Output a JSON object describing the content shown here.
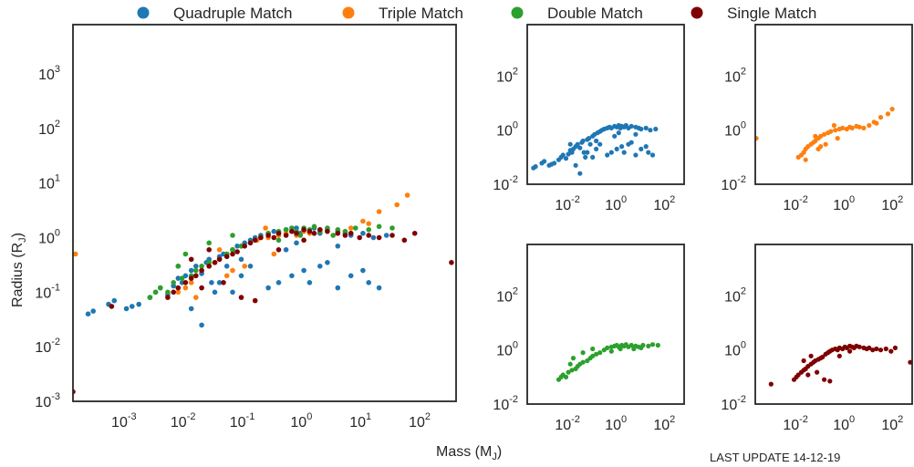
{
  "chart_data": {
    "type": "scatter",
    "legend": {
      "placement": "top",
      "entries": [
        {
          "key": "quadruple",
          "label": "Quadruple Match",
          "color": "#1f77b4"
        },
        {
          "key": "triple",
          "label": "Triple Match",
          "color": "#ff7f0e"
        },
        {
          "key": "double",
          "label": "Double Match",
          "color": "#2ca02c"
        },
        {
          "key": "single",
          "label": "Single Match",
          "color": "#7f0000"
        }
      ]
    },
    "xlabel": "Mass (M",
    "xlabel_sub": "J",
    "xlabel_close": ")",
    "ylabel": "Radius (R",
    "ylabel_sub": "J",
    "ylabel_close": ")",
    "xscale": "log",
    "yscale": "log",
    "grid": false,
    "main_panel": {
      "xlim": [
        0.0001,
        300
      ],
      "ylim": [
        0.001,
        8000
      ],
      "xticks": [
        {
          "exp": "-3",
          "v": 0.001
        },
        {
          "exp": "-2",
          "v": 0.01
        },
        {
          "exp": "-1",
          "v": 0.1
        },
        {
          "exp": "0",
          "v": 1
        },
        {
          "exp": "1",
          "v": 10
        },
        {
          "exp": "2",
          "v": 100
        }
      ],
      "yticks": [
        {
          "exp": "-3",
          "v": 0.001
        },
        {
          "exp": "-2",
          "v": 0.01
        },
        {
          "exp": "-1",
          "v": 0.1
        },
        {
          "exp": "0",
          "v": 1
        },
        {
          "exp": "1",
          "v": 10
        },
        {
          "exp": "2",
          "v": 100
        },
        {
          "exp": "3",
          "v": 1000
        }
      ]
    },
    "sub_panels": {
      "xlim": [
        0.0001,
        300
      ],
      "ylim": [
        0.01,
        8000
      ],
      "xticks": [
        {
          "exp": "-2",
          "v": 0.01
        },
        {
          "exp": "0",
          "v": 1
        },
        {
          "exp": "2",
          "v": 100
        }
      ],
      "yticks": [
        {
          "exp": "-2",
          "v": 0.01
        },
        {
          "exp": "0",
          "v": 1
        },
        {
          "exp": "2",
          "v": 100
        }
      ],
      "order": [
        "quadruple",
        "triple",
        "double",
        "single"
      ]
    },
    "series": [
      {
        "key": "quadruple",
        "name": "Quadruple Match",
        "points": [
          [
            0.00018,
            0.04
          ],
          [
            0.00022,
            0.045
          ],
          [
            0.0004,
            0.06
          ],
          [
            0.0005,
            0.07
          ],
          [
            0.0008,
            0.05
          ],
          [
            0.001,
            0.055
          ],
          [
            0.0013,
            0.06
          ],
          [
            0.002,
            0.08
          ],
          [
            0.0025,
            0.1
          ],
          [
            0.003,
            0.12
          ],
          [
            0.004,
            0.09
          ],
          [
            0.005,
            0.13
          ],
          [
            0.006,
            0.18
          ],
          [
            0.007,
            0.15
          ],
          [
            0.008,
            0.2
          ],
          [
            0.01,
            0.25
          ],
          [
            0.012,
            0.3
          ],
          [
            0.015,
            0.22
          ],
          [
            0.018,
            0.35
          ],
          [
            0.02,
            0.4
          ],
          [
            0.022,
            0.15
          ],
          [
            0.025,
            0.1
          ],
          [
            0.03,
            0.45
          ],
          [
            0.035,
            0.5
          ],
          [
            0.04,
            0.3
          ],
          [
            0.05,
            0.6
          ],
          [
            0.06,
            0.7
          ],
          [
            0.07,
            0.4
          ],
          [
            0.08,
            0.8
          ],
          [
            0.1,
            0.9
          ],
          [
            0.12,
            1.0
          ],
          [
            0.15,
            1.1
          ],
          [
            0.2,
            1.2
          ],
          [
            0.25,
            1.3
          ],
          [
            0.3,
            1.2
          ],
          [
            0.4,
            1.4
          ],
          [
            0.5,
            1.3
          ],
          [
            0.6,
            1.5
          ],
          [
            0.7,
            1.2
          ],
          [
            0.8,
            1.4
          ],
          [
            1.0,
            1.3
          ],
          [
            1.2,
            1.5
          ],
          [
            1.5,
            1.2
          ],
          [
            2.0,
            1.4
          ],
          [
            3.0,
            1.3
          ],
          [
            4.0,
            1.2
          ],
          [
            5.0,
            1.1
          ],
          [
            8.0,
            1.2
          ],
          [
            12.0,
            1.0
          ],
          [
            20.0,
            1.1
          ],
          [
            0.2,
            0.12
          ],
          [
            0.3,
            0.15
          ],
          [
            0.5,
            0.2
          ],
          [
            0.8,
            0.25
          ],
          [
            1.0,
            0.15
          ],
          [
            1.5,
            0.3
          ],
          [
            2.0,
            0.35
          ],
          [
            3.0,
            0.12
          ],
          [
            5.0,
            0.2
          ],
          [
            8.0,
            0.25
          ],
          [
            10.0,
            0.15
          ],
          [
            15.0,
            0.12
          ],
          [
            0.015,
            0.025
          ],
          [
            0.01,
            0.05
          ],
          [
            0.006,
            0.3
          ],
          [
            0.03,
            0.15
          ],
          [
            0.05,
            0.1
          ],
          [
            0.07,
            0.2
          ],
          [
            0.1,
            0.3
          ],
          [
            0.4,
            0.6
          ],
          [
            0.6,
            0.8
          ],
          [
            3.0,
            0.7
          ]
        ]
      },
      {
        "key": "triple",
        "name": "Triple Match",
        "points": [
          [
            0.00011,
            0.5
          ],
          [
            0.006,
            0.1
          ],
          [
            0.008,
            0.12
          ],
          [
            0.01,
            0.15
          ],
          [
            0.012,
            0.2
          ],
          [
            0.015,
            0.25
          ],
          [
            0.02,
            0.3
          ],
          [
            0.025,
            0.35
          ],
          [
            0.03,
            0.4
          ],
          [
            0.04,
            0.5
          ],
          [
            0.05,
            0.6
          ],
          [
            0.07,
            0.7
          ],
          [
            0.1,
            0.8
          ],
          [
            0.13,
            0.9
          ],
          [
            0.2,
            1.0
          ],
          [
            0.3,
            1.1
          ],
          [
            0.4,
            1.2
          ],
          [
            0.6,
            1.1
          ],
          [
            0.8,
            1.3
          ],
          [
            1.0,
            1.2
          ],
          [
            1.5,
            1.4
          ],
          [
            2.0,
            1.3
          ],
          [
            3.0,
            1.2
          ],
          [
            5.0,
            1.5
          ],
          [
            8.0,
            2.0
          ],
          [
            15.0,
            3.0
          ],
          [
            30.0,
            4.0
          ],
          [
            45.0,
            6.0
          ],
          [
            0.04,
            0.2
          ],
          [
            0.08,
            0.3
          ],
          [
            0.012,
            0.08
          ],
          [
            0.03,
            0.6
          ],
          [
            0.05,
            0.25
          ],
          [
            0.18,
            1.5
          ],
          [
            0.25,
            0.5
          ],
          [
            10.0,
            1.8
          ]
        ]
      },
      {
        "key": "double",
        "name": "Double Match",
        "points": [
          [
            0.002,
            0.08
          ],
          [
            0.0025,
            0.1
          ],
          [
            0.003,
            0.12
          ],
          [
            0.004,
            0.1
          ],
          [
            0.005,
            0.15
          ],
          [
            0.007,
            0.18
          ],
          [
            0.01,
            0.2
          ],
          [
            0.012,
            0.25
          ],
          [
            0.015,
            0.3
          ],
          [
            0.02,
            0.35
          ],
          [
            0.03,
            0.4
          ],
          [
            0.04,
            0.5
          ],
          [
            0.05,
            0.6
          ],
          [
            0.07,
            0.7
          ],
          [
            0.1,
            0.8
          ],
          [
            0.15,
            1.0
          ],
          [
            0.2,
            1.2
          ],
          [
            0.3,
            1.3
          ],
          [
            0.4,
            1.4
          ],
          [
            0.5,
            1.5
          ],
          [
            0.6,
            1.3
          ],
          [
            0.8,
            1.5
          ],
          [
            1.0,
            1.4
          ],
          [
            1.2,
            1.6
          ],
          [
            1.5,
            1.3
          ],
          [
            2.0,
            1.5
          ],
          [
            3.0,
            1.4
          ],
          [
            4.0,
            1.3
          ],
          [
            6.0,
            1.5
          ],
          [
            10.0,
            1.4
          ],
          [
            15.0,
            1.6
          ],
          [
            25.0,
            1.5
          ],
          [
            0.006,
            0.3
          ],
          [
            0.008,
            0.5
          ],
          [
            0.02,
            0.8
          ],
          [
            0.05,
            1.1
          ],
          [
            0.3,
            0.9
          ],
          [
            0.7,
            1.1
          ],
          [
            2.5,
            1.1
          ],
          [
            5.0,
            1.2
          ]
        ]
      },
      {
        "key": "single",
        "name": "Single Match",
        "points": [
          [
            0.0001,
            0.0015
          ],
          [
            0.00045,
            0.055
          ],
          [
            0.004,
            0.08
          ],
          [
            0.005,
            0.1
          ],
          [
            0.006,
            0.12
          ],
          [
            0.008,
            0.15
          ],
          [
            0.01,
            0.18
          ],
          [
            0.012,
            0.2
          ],
          [
            0.015,
            0.25
          ],
          [
            0.02,
            0.3
          ],
          [
            0.025,
            0.35
          ],
          [
            0.03,
            0.4
          ],
          [
            0.04,
            0.45
          ],
          [
            0.05,
            0.5
          ],
          [
            0.06,
            0.55
          ],
          [
            0.08,
            0.7
          ],
          [
            0.1,
            0.8
          ],
          [
            0.12,
            0.9
          ],
          [
            0.15,
            1.0
          ],
          [
            0.2,
            1.1
          ],
          [
            0.25,
            1.0
          ],
          [
            0.3,
            1.2
          ],
          [
            0.4,
            1.1
          ],
          [
            0.5,
            1.3
          ],
          [
            0.6,
            1.2
          ],
          [
            0.8,
            1.4
          ],
          [
            1.0,
            1.3
          ],
          [
            1.2,
            1.2
          ],
          [
            1.5,
            1.4
          ],
          [
            2.0,
            1.3
          ],
          [
            3.0,
            1.2
          ],
          [
            4.0,
            1.1
          ],
          [
            5.0,
            1.2
          ],
          [
            7.0,
            1.0
          ],
          [
            10.0,
            1.1
          ],
          [
            15.0,
            1.0
          ],
          [
            25.0,
            1.1
          ],
          [
            40.0,
            0.9
          ],
          [
            60.0,
            1.2
          ],
          [
            250.0,
            0.35
          ],
          [
            0.07,
            0.08
          ],
          [
            0.12,
            0.07
          ],
          [
            0.02,
            0.6
          ],
          [
            0.035,
            0.15
          ],
          [
            0.015,
            0.12
          ],
          [
            0.3,
            0.6
          ],
          [
            0.8,
            0.9
          ],
          [
            0.01,
            0.4
          ]
        ]
      }
    ]
  },
  "footer": {
    "update_text": "LAST UPDATE 14-12-19"
  }
}
